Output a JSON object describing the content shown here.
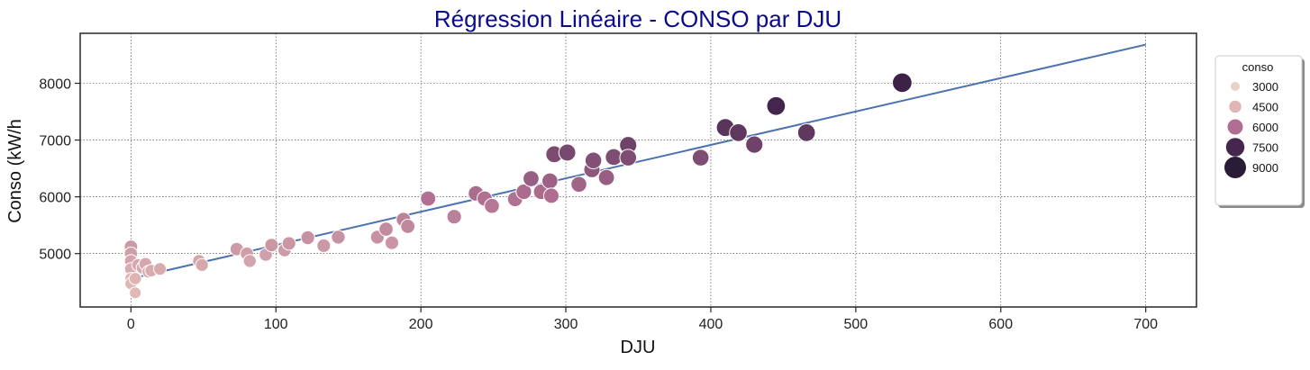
{
  "chart_data": {
    "type": "scatter",
    "title": "Régression Linéaire - CONSO par DJU",
    "xlabel": "DJU",
    "ylabel": "Conso (kW/h",
    "xlim": [
      -35,
      735
    ],
    "ylim": [
      4060,
      8880
    ],
    "xticks": [
      0,
      100,
      200,
      300,
      400,
      500,
      600,
      700
    ],
    "yticks": [
      5000,
      6000,
      7000,
      8000
    ],
    "grid": true,
    "legend": {
      "title": "conso",
      "placement": "right",
      "entries": [
        {
          "label": "3000",
          "value": 3000,
          "color": "#ead1c5"
        },
        {
          "label": "4500",
          "value": 4500,
          "color": "#dfb6b4"
        },
        {
          "label": "6000",
          "value": 6000,
          "color": "#b06f91"
        },
        {
          "label": "7500",
          "value": 7500,
          "color": "#45264f"
        },
        {
          "label": "9000",
          "value": 9000,
          "color": "#2a1b36"
        }
      ]
    },
    "regression_line": {
      "x": [
        0,
        700
      ],
      "y": [
        4560,
        8680
      ],
      "color": "#4c72b0"
    },
    "points": [
      {
        "x": 0,
        "y": 5120,
        "c": 5120
      },
      {
        "x": 0,
        "y": 5000,
        "c": 5000
      },
      {
        "x": 0,
        "y": 4870,
        "c": 4870
      },
      {
        "x": 0,
        "y": 4730,
        "c": 4730
      },
      {
        "x": 0,
        "y": 4560,
        "c": 4560
      },
      {
        "x": 0,
        "y": 4470,
        "c": 4470
      },
      {
        "x": 3,
        "y": 4560,
        "c": 4560
      },
      {
        "x": 3,
        "y": 4310,
        "c": 4310
      },
      {
        "x": 5,
        "y": 4800,
        "c": 4800
      },
      {
        "x": 8,
        "y": 4750,
        "c": 4750
      },
      {
        "x": 10,
        "y": 4820,
        "c": 4820
      },
      {
        "x": 12,
        "y": 4680,
        "c": 4680
      },
      {
        "x": 14,
        "y": 4700,
        "c": 4700
      },
      {
        "x": 20,
        "y": 4730,
        "c": 4730
      },
      {
        "x": 47,
        "y": 4870,
        "c": 4870
      },
      {
        "x": 49,
        "y": 4800,
        "c": 4800
      },
      {
        "x": 73,
        "y": 5080,
        "c": 5080
      },
      {
        "x": 80,
        "y": 5000,
        "c": 5000
      },
      {
        "x": 82,
        "y": 4870,
        "c": 4870
      },
      {
        "x": 93,
        "y": 4980,
        "c": 4980
      },
      {
        "x": 97,
        "y": 5150,
        "c": 5150
      },
      {
        "x": 106,
        "y": 5060,
        "c": 5060
      },
      {
        "x": 109,
        "y": 5180,
        "c": 5180
      },
      {
        "x": 122,
        "y": 5280,
        "c": 5280
      },
      {
        "x": 133,
        "y": 5140,
        "c": 5140
      },
      {
        "x": 143,
        "y": 5290,
        "c": 5290
      },
      {
        "x": 170,
        "y": 5290,
        "c": 5290
      },
      {
        "x": 176,
        "y": 5430,
        "c": 5430
      },
      {
        "x": 180,
        "y": 5190,
        "c": 5190
      },
      {
        "x": 188,
        "y": 5600,
        "c": 5600
      },
      {
        "x": 191,
        "y": 5480,
        "c": 5480
      },
      {
        "x": 205,
        "y": 5970,
        "c": 5970
      },
      {
        "x": 223,
        "y": 5650,
        "c": 5650
      },
      {
        "x": 238,
        "y": 6060,
        "c": 6060
      },
      {
        "x": 244,
        "y": 5970,
        "c": 5970
      },
      {
        "x": 249,
        "y": 5840,
        "c": 5840
      },
      {
        "x": 265,
        "y": 5960,
        "c": 5960
      },
      {
        "x": 271,
        "y": 6090,
        "c": 6090
      },
      {
        "x": 276,
        "y": 6320,
        "c": 6320
      },
      {
        "x": 283,
        "y": 6090,
        "c": 6090
      },
      {
        "x": 289,
        "y": 6280,
        "c": 6280
      },
      {
        "x": 290,
        "y": 6020,
        "c": 6020
      },
      {
        "x": 292,
        "y": 6750,
        "c": 6750
      },
      {
        "x": 301,
        "y": 6780,
        "c": 6780
      },
      {
        "x": 309,
        "y": 6220,
        "c": 6220
      },
      {
        "x": 318,
        "y": 6480,
        "c": 6480
      },
      {
        "x": 319,
        "y": 6640,
        "c": 6640
      },
      {
        "x": 328,
        "y": 6340,
        "c": 6340
      },
      {
        "x": 333,
        "y": 6700,
        "c": 6700
      },
      {
        "x": 343,
        "y": 6910,
        "c": 6910
      },
      {
        "x": 343,
        "y": 6690,
        "c": 6690
      },
      {
        "x": 393,
        "y": 6690,
        "c": 6690
      },
      {
        "x": 410,
        "y": 7220,
        "c": 7220
      },
      {
        "x": 419,
        "y": 7130,
        "c": 7130
      },
      {
        "x": 430,
        "y": 6920,
        "c": 6920
      },
      {
        "x": 445,
        "y": 7600,
        "c": 7600
      },
      {
        "x": 466,
        "y": 7130,
        "c": 7130
      },
      {
        "x": 532,
        "y": 8010,
        "c": 8010
      }
    ]
  }
}
